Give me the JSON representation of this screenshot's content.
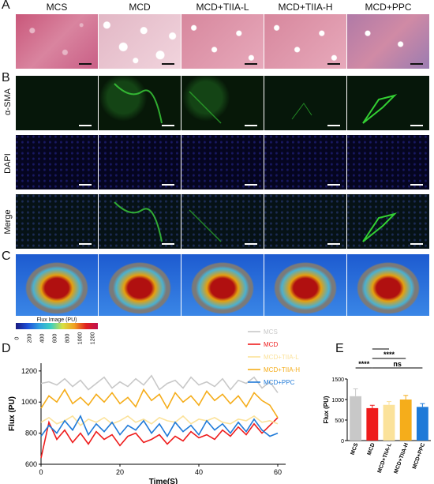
{
  "panels": {
    "a": "A",
    "b": "B",
    "c": "C",
    "d": "D",
    "e": "E"
  },
  "groups": [
    "MCS",
    "MCD",
    "MCD+TIIA-L",
    "MCD+TIIA-H",
    "MCD+PPC"
  ],
  "rows": [
    "α-SMA",
    "DAPI",
    "Merge"
  ],
  "flux_scale": {
    "title": "Flux Image (PU)",
    "ticks": [
      "0",
      "200",
      "400",
      "600",
      "800",
      "1000",
      "1200"
    ]
  },
  "chart_data": [
    {
      "type": "line",
      "xlabel": "Time(S)",
      "ylabel": "Flux (PU)",
      "xlim": [
        0,
        62
      ],
      "ylim": [
        600,
        1250
      ],
      "xticks": [
        0,
        20,
        40,
        60
      ],
      "yticks": [
        600,
        800,
        1000,
        1200
      ],
      "legend_position": "top-right",
      "series": [
        {
          "name": "MCS",
          "color": "#c8c8c8",
          "x": [
            0,
            2,
            4,
            6,
            8,
            10,
            12,
            14,
            16,
            18,
            20,
            22,
            24,
            26,
            28,
            30,
            32,
            34,
            36,
            38,
            40,
            42,
            44,
            46,
            48,
            50,
            52,
            54,
            56,
            58,
            60
          ],
          "values": [
            1120,
            1130,
            1110,
            1150,
            1100,
            1140,
            1080,
            1120,
            1160,
            1090,
            1130,
            1100,
            1150,
            1110,
            1170,
            1080,
            1120,
            1140,
            1090,
            1160,
            1110,
            1130,
            1100,
            1150,
            1080,
            1140,
            1120,
            1160,
            1090,
            1130,
            1060
          ]
        },
        {
          "name": "MCD",
          "color": "#ee1c1c",
          "x": [
            0,
            2,
            4,
            6,
            8,
            10,
            12,
            14,
            16,
            18,
            20,
            22,
            24,
            26,
            28,
            30,
            32,
            34,
            36,
            38,
            40,
            42,
            44,
            46,
            48,
            50,
            52,
            54,
            56,
            58,
            60
          ],
          "values": [
            640,
            870,
            760,
            820,
            740,
            800,
            730,
            810,
            760,
            790,
            720,
            780,
            800,
            740,
            760,
            790,
            730,
            780,
            750,
            810,
            770,
            790,
            760,
            820,
            780,
            840,
            790,
            860,
            800,
            850,
            900
          ]
        },
        {
          "name": "MCD+TIIA-L",
          "color": "#fbe29a",
          "x": [
            0,
            2,
            4,
            6,
            8,
            10,
            12,
            14,
            16,
            18,
            20,
            22,
            24,
            26,
            28,
            30,
            32,
            34,
            36,
            38,
            40,
            42,
            44,
            46,
            48,
            50,
            52,
            54,
            56,
            58,
            60
          ],
          "values": [
            870,
            900,
            860,
            880,
            910,
            850,
            890,
            870,
            900,
            860,
            880,
            910,
            870,
            890,
            860,
            900,
            880,
            870,
            910,
            860,
            890,
            880,
            900,
            870,
            860,
            890,
            880,
            910,
            870,
            880,
            860
          ]
        },
        {
          "name": "MCD+TIIA-H",
          "color": "#f5ad1b",
          "x": [
            0,
            2,
            4,
            6,
            8,
            10,
            12,
            14,
            16,
            18,
            20,
            22,
            24,
            26,
            28,
            30,
            32,
            34,
            36,
            38,
            40,
            42,
            44,
            46,
            48,
            50,
            52,
            54,
            56,
            58,
            60
          ],
          "values": [
            960,
            1040,
            1000,
            1080,
            990,
            1030,
            980,
            1050,
            1000,
            1060,
            990,
            1030,
            970,
            1080,
            1010,
            1050,
            960,
            1060,
            1000,
            1040,
            980,
            1070,
            1010,
            1050,
            990,
            1040,
            970,
            1060,
            1010,
            980,
            900
          ]
        },
        {
          "name": "MCD+PPC",
          "color": "#1f7ad8",
          "x": [
            0,
            2,
            4,
            6,
            8,
            10,
            12,
            14,
            16,
            18,
            20,
            22,
            24,
            26,
            28,
            30,
            32,
            34,
            36,
            38,
            40,
            42,
            44,
            46,
            48,
            50,
            52,
            54,
            56,
            58,
            60
          ],
          "values": [
            780,
            850,
            800,
            880,
            820,
            910,
            790,
            860,
            810,
            870,
            790,
            850,
            820,
            880,
            800,
            860,
            780,
            870,
            810,
            850,
            790,
            880,
            820,
            860,
            800,
            870,
            810,
            890,
            820,
            780,
            800
          ]
        }
      ]
    },
    {
      "type": "bar",
      "ylabel": "Flux (PU)",
      "ylim": [
        0,
        1500
      ],
      "yticks": [
        0,
        500,
        1000,
        1500
      ],
      "categories": [
        "MCS",
        "MCD",
        "MCD+TIIA-L",
        "MCD+TIIA-H",
        "MCD+PPC"
      ],
      "values": [
        1080,
        790,
        870,
        1000,
        820
      ],
      "errors": [
        180,
        70,
        80,
        100,
        80
      ],
      "colors": [
        "#c8c8c8",
        "#ee1c1c",
        "#fbe29a",
        "#f5ad1b",
        "#1f7ad8"
      ],
      "annotations": [
        {
          "label": "****",
          "from": "MCS",
          "to": "MCD"
        },
        {
          "label": "****",
          "from": "MCD",
          "to": "MCD+TIIA-L"
        },
        {
          "label": "****",
          "from": "MCD",
          "to": "MCD+TIIA-H"
        },
        {
          "label": "ns",
          "from": "MCD",
          "to": "MCD+PPC"
        }
      ]
    }
  ]
}
